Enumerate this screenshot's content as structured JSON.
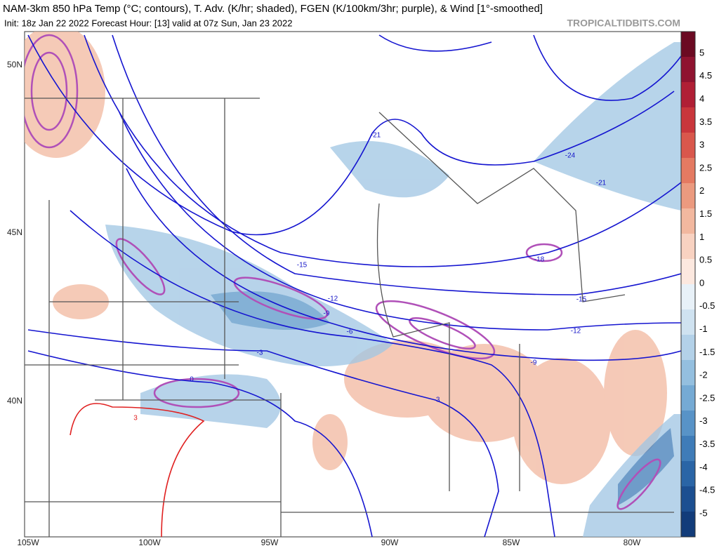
{
  "header": {
    "title": "NAM-3km 850 hPa Temp (°C; contours), T. Adv. (K/hr; shaded), FGEN (K/100km/3hr; purple), & Wind [1°-smoothed]",
    "subtitle": "Init: 18z Jan 22 2022   Forecast Hour: [13]   valid at 07z Sun, Jan 23 2022",
    "watermark": "TROPICALTIDBITS.COM"
  },
  "map": {
    "longitude_labels": [
      "105W",
      "100W",
      "95W",
      "90W",
      "85W",
      "80W"
    ],
    "latitude_labels": [
      "50N",
      "45N",
      "40N"
    ],
    "contour_labels": [
      "-21",
      "-24",
      "-21",
      "-18",
      "-15",
      "-15",
      "-12",
      "-9",
      "-6",
      "-3",
      "0",
      "-12",
      "-9",
      "-3",
      "3"
    ]
  },
  "colorbar": {
    "labels": [
      "5",
      "4.5",
      "4",
      "3.5",
      "3",
      "2.5",
      "2",
      "1.5",
      "1",
      "0.5",
      "0",
      "-0.5",
      "-1",
      "-1.5",
      "-2",
      "-2.5",
      "-3",
      "-3.5",
      "-4",
      "-4.5",
      "-5"
    ]
  }
}
